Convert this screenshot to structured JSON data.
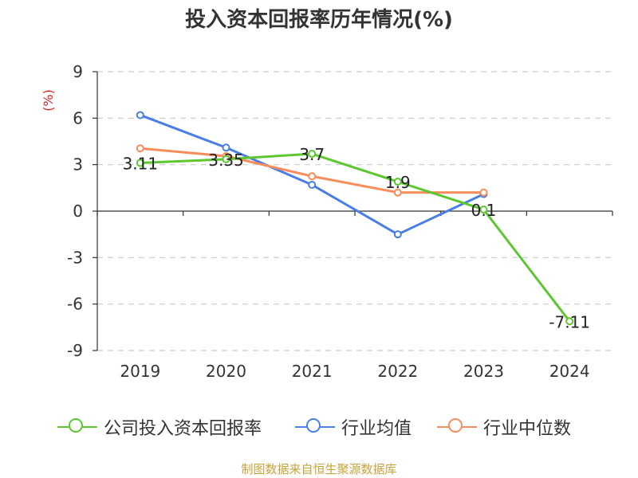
{
  "chart_data": {
    "type": "line",
    "title": "投入资本回报率历年情况(%)",
    "ylabel": "(%)",
    "xlabel": "",
    "categories": [
      "2019",
      "2020",
      "2021",
      "2022",
      "2023",
      "2024"
    ],
    "ylim": [
      -9,
      9
    ],
    "yticks": [
      9,
      6,
      3,
      0,
      -3,
      -6,
      -9
    ],
    "grid": true,
    "legend_position": "bottom",
    "series": [
      {
        "name": "公司投入资本回报率",
        "color": "#5cc72f",
        "values": [
          3.11,
          3.35,
          3.7,
          1.9,
          0.1,
          -7.11
        ],
        "labels": [
          "3.11",
          "3.35",
          "3.7",
          "1.9",
          "0.1",
          "-7.11"
        ]
      },
      {
        "name": "行业均值",
        "color": "#4a7ee6",
        "values": [
          6.2,
          4.1,
          1.7,
          -1.5,
          1.1,
          null
        ]
      },
      {
        "name": "行业中位数",
        "color": "#f88c5a",
        "values": [
          4.05,
          3.55,
          2.25,
          1.2,
          1.2,
          null
        ]
      }
    ]
  },
  "source": "制图数据来自恒生聚源数据库"
}
